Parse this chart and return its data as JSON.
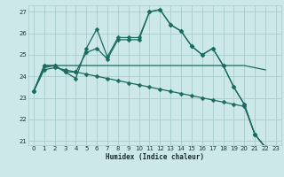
{
  "xlabel": "Humidex (Indice chaleur)",
  "bg_color": "#cce8e8",
  "grid_color": "#aacccc",
  "line_color": "#1a6b60",
  "xlim": [
    -0.5,
    23.5
  ],
  "ylim": [
    20.8,
    27.3
  ],
  "yticks": [
    21,
    22,
    23,
    24,
    25,
    26,
    27
  ],
  "xticks": [
    0,
    1,
    2,
    3,
    4,
    5,
    6,
    7,
    8,
    9,
    10,
    11,
    12,
    13,
    14,
    15,
    16,
    17,
    18,
    19,
    20,
    21,
    22,
    23
  ],
  "series": [
    {
      "x": [
        0,
        1,
        2,
        3,
        4,
        5,
        6,
        7,
        8,
        9,
        10,
        11,
        12,
        13,
        14,
        15,
        16,
        17,
        18,
        19,
        20,
        21,
        22
      ],
      "y": [
        23.3,
        24.5,
        24.5,
        24.2,
        23.9,
        25.3,
        26.2,
        24.9,
        25.8,
        25.8,
        25.8,
        27.0,
        27.1,
        26.4,
        26.1,
        25.4,
        25.0,
        25.3,
        24.5,
        23.5,
        22.7,
        21.3,
        20.7
      ],
      "marker": true
    },
    {
      "x": [
        0,
        1,
        2,
        3,
        4,
        5,
        6,
        7,
        8,
        9,
        10,
        11,
        12,
        13,
        14,
        15,
        16,
        17,
        18,
        19,
        20,
        21,
        22
      ],
      "y": [
        23.3,
        24.5,
        24.5,
        24.2,
        24.2,
        25.1,
        25.3,
        24.8,
        25.7,
        25.7,
        25.7,
        27.0,
        27.1,
        26.4,
        26.1,
        25.4,
        25.0,
        25.3,
        24.5,
        23.5,
        22.7,
        21.3,
        20.7
      ],
      "marker": true
    },
    {
      "x": [
        0,
        1,
        2,
        3,
        4,
        5,
        6,
        7,
        8,
        9,
        10,
        11,
        12,
        13,
        14,
        15,
        16,
        17,
        18,
        19,
        20,
        21,
        22
      ],
      "y": [
        23.3,
        24.4,
        24.5,
        24.5,
        24.5,
        24.5,
        24.5,
        24.5,
        24.5,
        24.5,
        24.5,
        24.5,
        24.5,
        24.5,
        24.5,
        24.5,
        24.5,
        24.5,
        24.5,
        24.5,
        24.5,
        24.4,
        24.3
      ],
      "marker": false
    },
    {
      "x": [
        0,
        1,
        2,
        3,
        4,
        5,
        6,
        7,
        8,
        9,
        10,
        11,
        12,
        13,
        14,
        15,
        16,
        17,
        18,
        19,
        20,
        21,
        22
      ],
      "y": [
        23.3,
        24.3,
        24.4,
        24.3,
        24.2,
        24.1,
        24.0,
        23.9,
        23.8,
        23.7,
        23.6,
        23.5,
        23.4,
        23.3,
        23.2,
        23.1,
        23.0,
        22.9,
        22.8,
        22.7,
        22.6,
        21.3,
        20.7
      ],
      "marker": true
    }
  ],
  "markersize": 2.5,
  "linewidth": 0.9
}
